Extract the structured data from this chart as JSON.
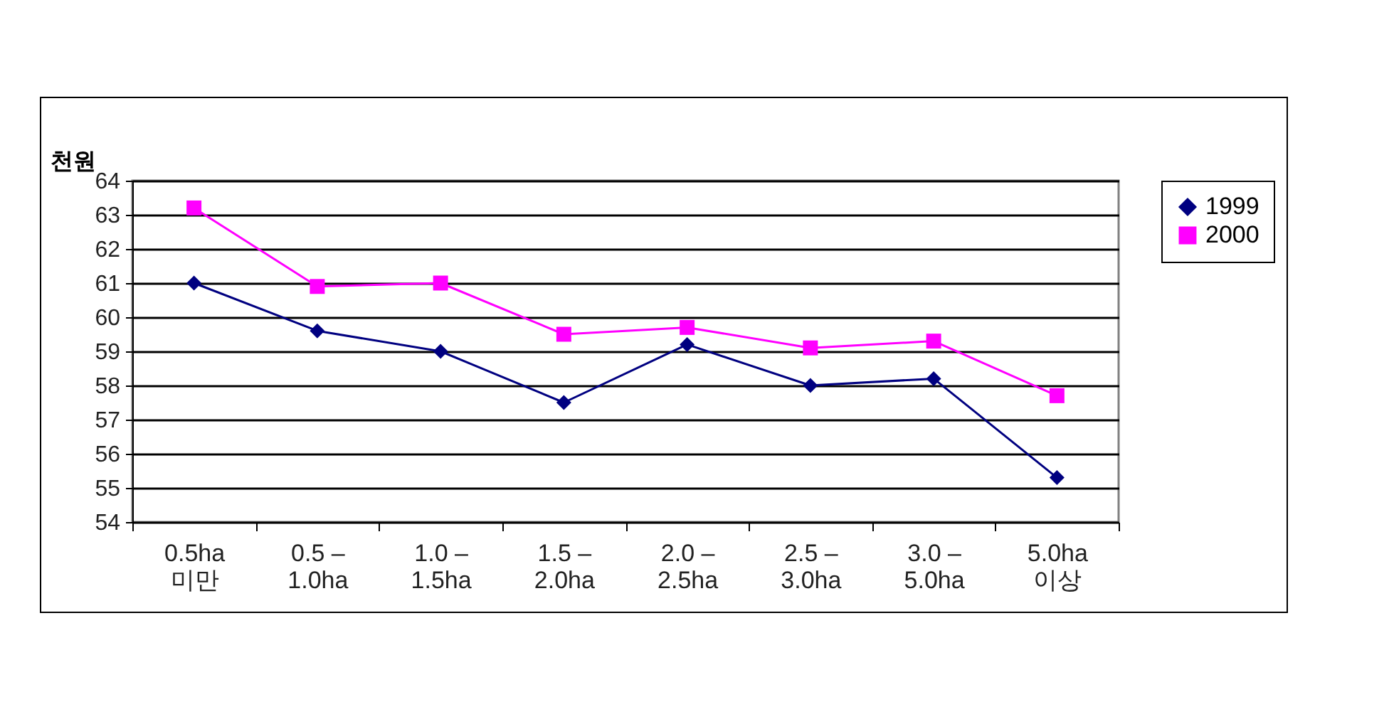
{
  "chart_data": {
    "type": "line",
    "ylabel": "천원",
    "categories": [
      "0.5ha\n미만",
      "0.5 –\n1.0ha",
      "1.0 –\n1.5ha",
      "1.5 –\n2.0ha",
      "2.0 –\n2.5ha",
      "2.5 –\n3.0ha",
      "3.0 –\n5.0ha",
      "5.0ha\n이상"
    ],
    "series": [
      {
        "name": "1999",
        "color": "#000080",
        "marker": "diamond",
        "values": [
          61.0,
          59.6,
          59.0,
          57.5,
          59.2,
          58.0,
          58.2,
          55.3
        ]
      },
      {
        "name": "2000",
        "color": "#ff00ff",
        "marker": "square",
        "values": [
          63.2,
          60.9,
          61.0,
          59.5,
          59.7,
          59.1,
          59.3,
          57.7
        ]
      }
    ],
    "ylim": [
      54,
      64
    ],
    "yticks": [
      54,
      55,
      56,
      57,
      58,
      59,
      60,
      61,
      62,
      63,
      64
    ],
    "grid": "y",
    "legend": "right",
    "line_style": "solid"
  }
}
